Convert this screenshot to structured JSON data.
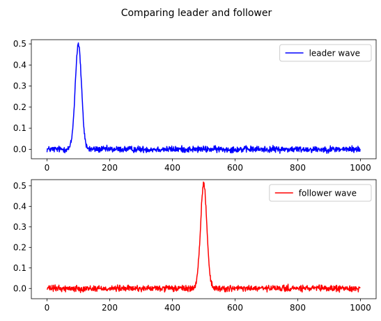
{
  "figure": {
    "suptitle": "Comparing leader and follower"
  },
  "chart_data": [
    {
      "type": "line",
      "title": "",
      "xlabel": "",
      "ylabel": "",
      "xlim": [
        -50,
        1050
      ],
      "ylim": [
        -0.045,
        0.52
      ],
      "xticks": [
        0,
        200,
        400,
        600,
        800,
        1000
      ],
      "xtick_labels": [
        "0",
        "200",
        "400",
        "600",
        "800",
        "1000"
      ],
      "yticks": [
        0.0,
        0.1,
        0.2,
        0.3,
        0.4,
        0.5
      ],
      "ytick_labels": [
        "0.0",
        "0.1",
        "0.2",
        "0.3",
        "0.4",
        "0.5"
      ],
      "legend": "top-right",
      "grid": false,
      "series": [
        {
          "name": "leader wave",
          "color": "#0000ff",
          "pulse_center": 100,
          "pulse_peak": 0.5,
          "pulse_sigma": 10,
          "noise_amplitude": 0.02,
          "x_range": [
            0,
            999
          ]
        }
      ]
    },
    {
      "type": "line",
      "title": "",
      "xlabel": "",
      "ylabel": "",
      "xlim": [
        -50,
        1050
      ],
      "ylim": [
        -0.05,
        0.53
      ],
      "xticks": [
        0,
        200,
        400,
        600,
        800,
        1000
      ],
      "xtick_labels": [
        "0",
        "200",
        "400",
        "600",
        "800",
        "1000"
      ],
      "yticks": [
        0.0,
        0.1,
        0.2,
        0.3,
        0.4,
        0.5
      ],
      "ytick_labels": [
        "0.0",
        "0.1",
        "0.2",
        "0.3",
        "0.4",
        "0.5"
      ],
      "legend": "top-right",
      "grid": false,
      "series": [
        {
          "name": "follower wave",
          "color": "#ff0000",
          "pulse_center": 500,
          "pulse_peak": 0.51,
          "pulse_sigma": 10,
          "noise_amplitude": 0.02,
          "x_range": [
            0,
            999
          ]
        }
      ]
    }
  ]
}
